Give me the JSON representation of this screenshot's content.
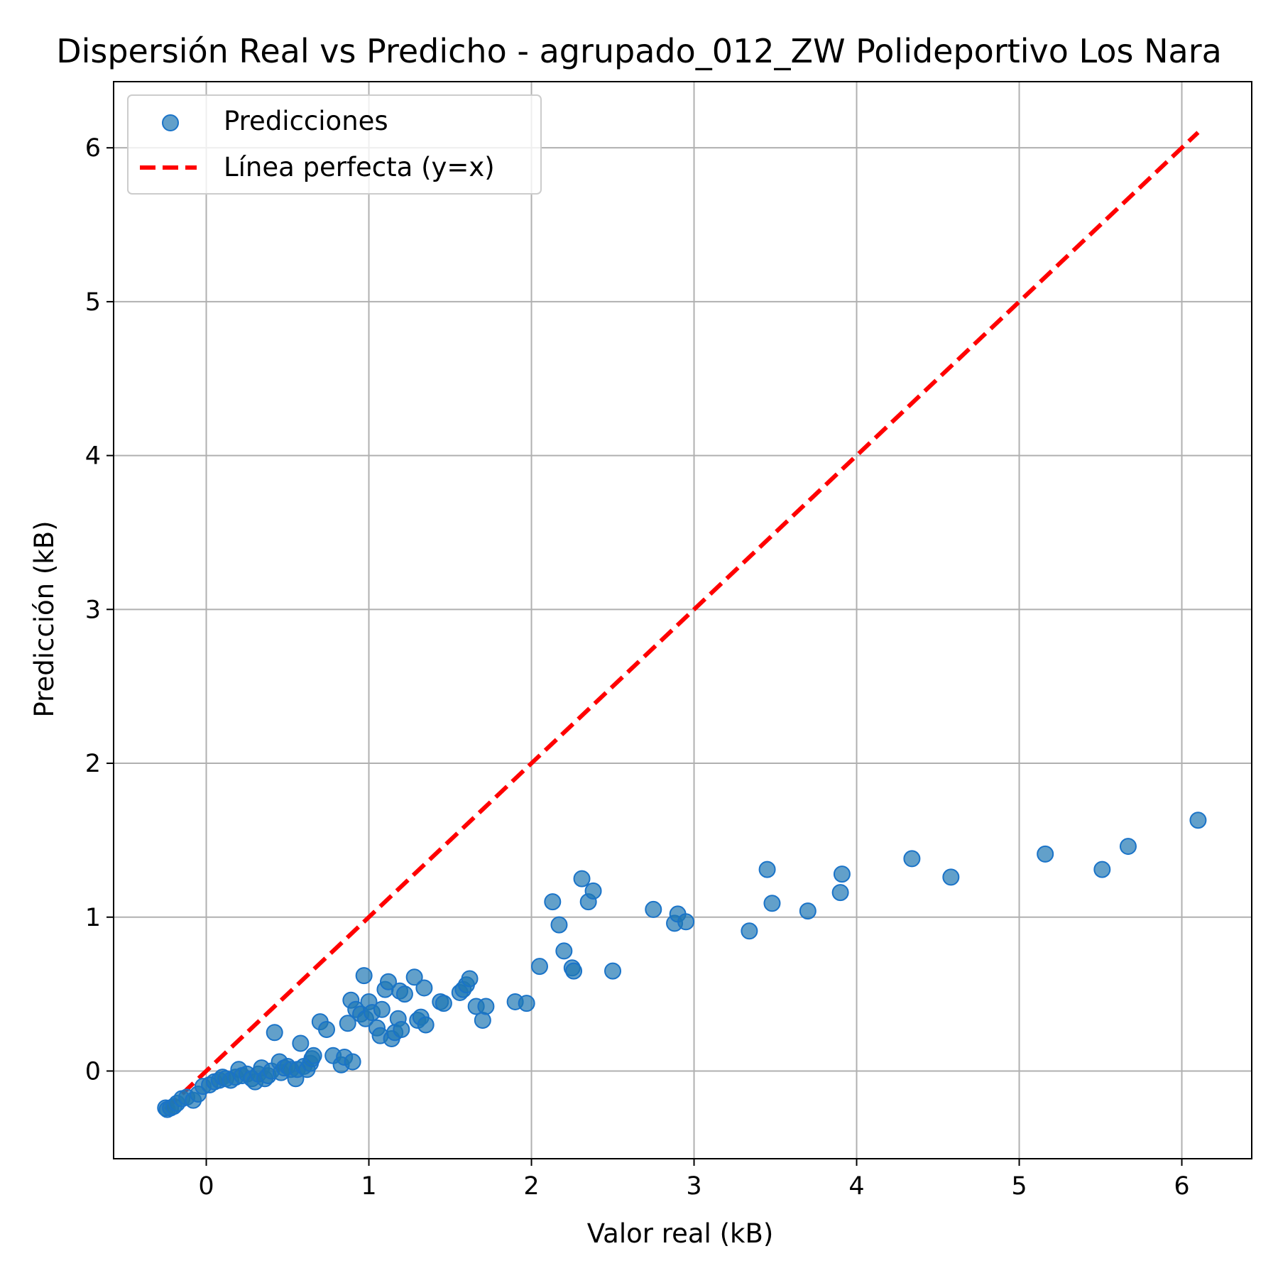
{
  "colors": {
    "scatter_fill": "#1f77b4",
    "scatter_edge": "#1a73c8",
    "perfect_line": "#ff0000",
    "grid": "#b0b0b0",
    "axes": "#000000"
  },
  "chart_data": {
    "type": "scatter",
    "title": "Dispersión Real vs Predicho - agrupado_012_ZW Polideportivo Los Nara",
    "xlabel": "Valor real (kB)",
    "ylabel": "Predicción (kB)",
    "xlim": [
      -0.57,
      6.43
    ],
    "ylim": [
      -0.57,
      6.43
    ],
    "xticks": [
      0,
      1,
      2,
      3,
      4,
      5,
      6
    ],
    "yticks": [
      0,
      1,
      2,
      3,
      4,
      5,
      6
    ],
    "grid": true,
    "legend_position": "top-left",
    "series": [
      {
        "name": "Predicciones",
        "kind": "scatter",
        "points": [
          [
            -0.25,
            -0.24
          ],
          [
            -0.24,
            -0.25
          ],
          [
            -0.22,
            -0.24
          ],
          [
            -0.2,
            -0.23
          ],
          [
            -0.18,
            -0.21
          ],
          [
            -0.15,
            -0.18
          ],
          [
            -0.12,
            -0.17
          ],
          [
            -0.08,
            -0.19
          ],
          [
            -0.05,
            -0.15
          ],
          [
            -0.02,
            -0.1
          ],
          [
            0.02,
            -0.09
          ],
          [
            0.05,
            -0.07
          ],
          [
            0.08,
            -0.06
          ],
          [
            0.1,
            -0.04
          ],
          [
            0.12,
            -0.05
          ],
          [
            0.15,
            -0.06
          ],
          [
            0.18,
            -0.04
          ],
          [
            0.2,
            0.01
          ],
          [
            0.22,
            -0.03
          ],
          [
            0.25,
            -0.02
          ],
          [
            0.28,
            -0.05
          ],
          [
            0.3,
            -0.07
          ],
          [
            0.32,
            -0.02
          ],
          [
            0.34,
            0.02
          ],
          [
            0.36,
            -0.05
          ],
          [
            0.38,
            -0.03
          ],
          [
            0.4,
            0.0
          ],
          [
            0.42,
            0.25
          ],
          [
            0.45,
            0.06
          ],
          [
            0.46,
            -0.01
          ],
          [
            0.48,
            0.02
          ],
          [
            0.5,
            0.03
          ],
          [
            0.52,
            0.01
          ],
          [
            0.55,
            -0.05
          ],
          [
            0.56,
            0.01
          ],
          [
            0.58,
            0.18
          ],
          [
            0.6,
            0.03
          ],
          [
            0.62,
            0.01
          ],
          [
            0.64,
            0.05
          ],
          [
            0.65,
            0.08
          ],
          [
            0.66,
            0.1
          ],
          [
            0.7,
            0.32
          ],
          [
            0.74,
            0.27
          ],
          [
            0.78,
            0.1
          ],
          [
            0.83,
            0.04
          ],
          [
            0.85,
            0.09
          ],
          [
            0.87,
            0.31
          ],
          [
            0.89,
            0.46
          ],
          [
            0.9,
            0.06
          ],
          [
            0.92,
            0.4
          ],
          [
            0.95,
            0.37
          ],
          [
            0.97,
            0.62
          ],
          [
            0.98,
            0.34
          ],
          [
            1.0,
            0.45
          ],
          [
            1.02,
            0.38
          ],
          [
            1.05,
            0.28
          ],
          [
            1.07,
            0.23
          ],
          [
            1.08,
            0.4
          ],
          [
            1.1,
            0.53
          ],
          [
            1.12,
            0.58
          ],
          [
            1.14,
            0.21
          ],
          [
            1.16,
            0.25
          ],
          [
            1.18,
            0.34
          ],
          [
            1.19,
            0.52
          ],
          [
            1.2,
            0.27
          ],
          [
            1.22,
            0.5
          ],
          [
            1.28,
            0.61
          ],
          [
            1.3,
            0.33
          ],
          [
            1.32,
            0.35
          ],
          [
            1.34,
            0.54
          ],
          [
            1.35,
            0.3
          ],
          [
            1.44,
            0.45
          ],
          [
            1.46,
            0.44
          ],
          [
            1.56,
            0.51
          ],
          [
            1.58,
            0.53
          ],
          [
            1.6,
            0.56
          ],
          [
            1.62,
            0.6
          ],
          [
            1.66,
            0.42
          ],
          [
            1.7,
            0.33
          ],
          [
            1.72,
            0.42
          ],
          [
            1.9,
            0.45
          ],
          [
            1.97,
            0.44
          ],
          [
            2.05,
            0.68
          ],
          [
            2.13,
            1.1
          ],
          [
            2.17,
            0.95
          ],
          [
            2.2,
            0.78
          ],
          [
            2.25,
            0.67
          ],
          [
            2.26,
            0.65
          ],
          [
            2.31,
            1.25
          ],
          [
            2.35,
            1.1
          ],
          [
            2.38,
            1.17
          ],
          [
            2.5,
            0.65
          ],
          [
            2.75,
            1.05
          ],
          [
            2.88,
            0.96
          ],
          [
            2.9,
            1.02
          ],
          [
            2.95,
            0.97
          ],
          [
            3.34,
            0.91
          ],
          [
            3.45,
            1.31
          ],
          [
            3.48,
            1.09
          ],
          [
            3.7,
            1.04
          ],
          [
            3.9,
            1.16
          ],
          [
            3.91,
            1.28
          ],
          [
            4.34,
            1.38
          ],
          [
            4.58,
            1.26
          ],
          [
            5.16,
            1.41
          ],
          [
            5.51,
            1.31
          ],
          [
            5.67,
            1.46
          ],
          [
            6.1,
            1.63
          ]
        ]
      },
      {
        "name": "Línea perfecta (y=x)",
        "kind": "line",
        "points": [
          [
            -0.25,
            -0.25
          ],
          [
            6.1,
            6.1
          ]
        ]
      }
    ]
  }
}
